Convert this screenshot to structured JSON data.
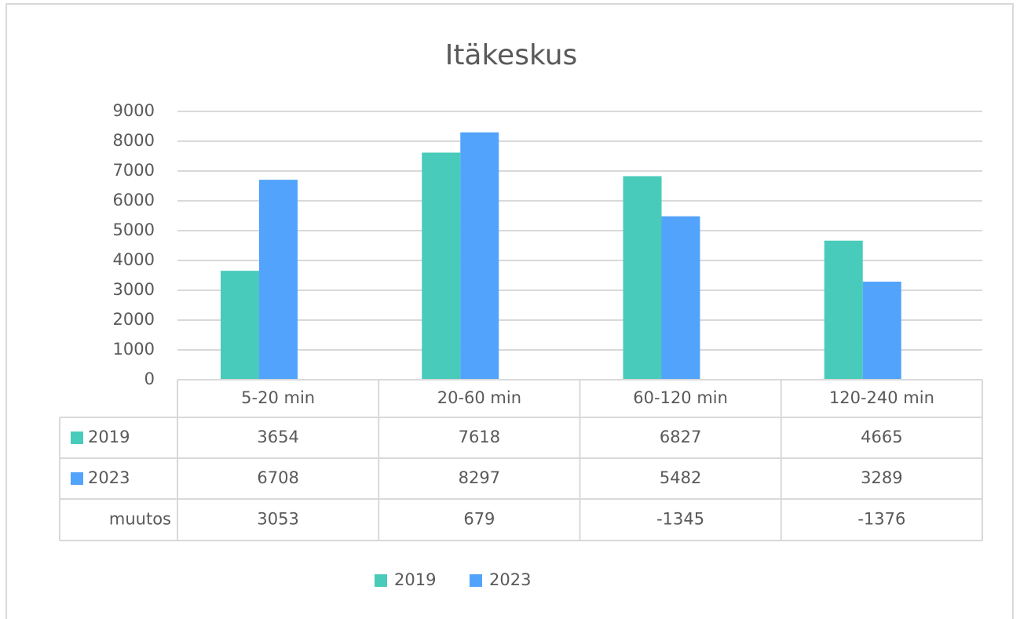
{
  "chart_data": {
    "type": "bar",
    "title": "Itäkeskus",
    "categories": [
      "5-20 min",
      "20-60 min",
      "60-120 min",
      "120-240 min"
    ],
    "series": [
      {
        "name": "2019",
        "color": "#48cbba",
        "values": [
          3654,
          7618,
          6827,
          4665
        ]
      },
      {
        "name": "2023",
        "color": "#52a3fb",
        "values": [
          6708,
          8297,
          5482,
          3289
        ]
      }
    ],
    "table_rows": [
      {
        "name": "muutos",
        "values": [
          3053,
          679,
          -1345,
          -1376
        ]
      }
    ],
    "ylim": [
      0,
      9000
    ],
    "yticks": [
      0,
      1000,
      2000,
      3000,
      4000,
      5000,
      6000,
      7000,
      8000,
      9000
    ],
    "grid": true,
    "legend": "bottom"
  }
}
